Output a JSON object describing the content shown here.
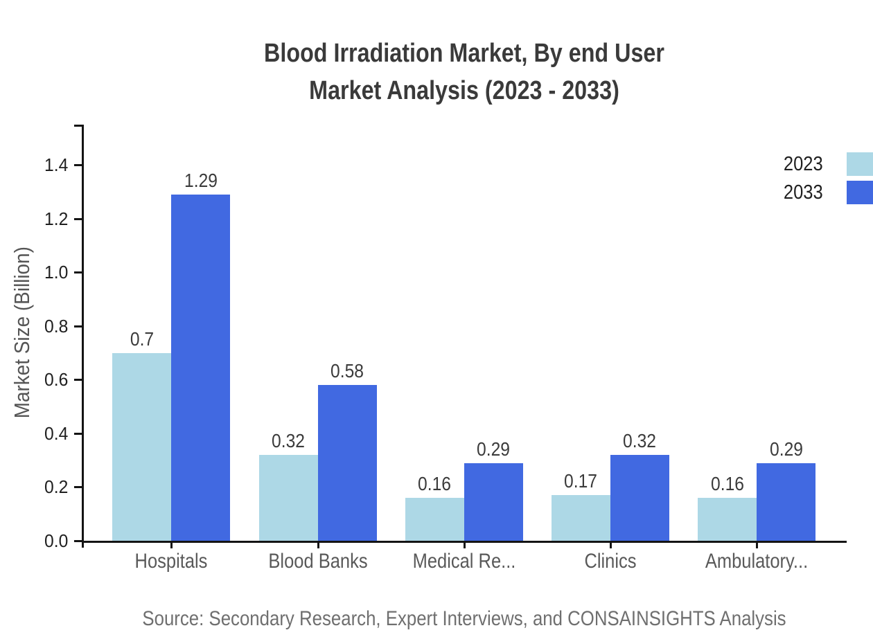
{
  "title": {
    "line1": "Blood Irradiation Market, By end User",
    "line2": "Market Analysis (2023 - 2033)"
  },
  "source": {
    "text": "Source: Secondary Research, Expert Interviews, and CONSAINSIGHTS Analysis"
  },
  "chart_data": {
    "type": "bar",
    "title": "Blood Irradiation Market, By end User Market Analysis (2023 - 2033)",
    "categories": [
      "Hospitals",
      "Blood Banks",
      "Medical Re...",
      "Clinics",
      "Ambulatory..."
    ],
    "series": [
      {
        "name": "2023",
        "color": "#ADD8E6",
        "values": [
          0.7,
          0.32,
          0.16,
          0.17,
          0.16
        ]
      },
      {
        "name": "2033",
        "color": "#4169E1",
        "values": [
          1.29,
          0.58,
          0.29,
          0.32,
          0.29
        ]
      }
    ],
    "value_labels": [
      "0.7",
      "1.29",
      "0.32",
      "0.58",
      "0.16",
      "0.29",
      "0.17",
      "0.32",
      "0.16",
      "0.29"
    ],
    "xlabel": "",
    "ylabel": "Market Size (Billion)",
    "ylim": [
      0,
      1.55
    ],
    "yticks": [
      0.0,
      0.2,
      0.4,
      0.6,
      0.8,
      1.0,
      1.2,
      1.4
    ],
    "ytick_labels": [
      "0.0",
      "0.2",
      "0.4",
      "0.6",
      "0.8",
      "1.0",
      "1.2",
      "1.4"
    ],
    "grid": false,
    "legend_position": "top-right",
    "axis_color": "#141414"
  },
  "legend_note": "legend shows series names with color swatches to the right of the labels"
}
